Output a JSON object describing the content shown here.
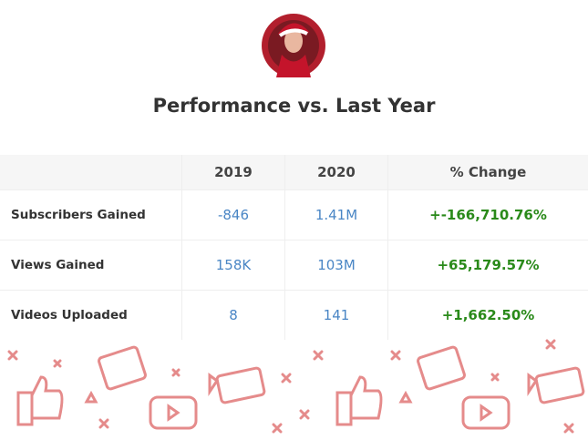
{
  "header": {
    "title": "Performance vs. Last Year"
  },
  "table": {
    "columns": [
      "2019",
      "2020",
      "% Change"
    ],
    "rows": [
      [
        "Subscribers Gained",
        "-846",
        "1.41M",
        "+-166,710.76%"
      ],
      [
        "Views Gained",
        "158K",
        "103M",
        "+65,179.57%"
      ],
      [
        "Videos Uploaded",
        "8",
        "141",
        "+1,662.50%"
      ]
    ]
  }
}
